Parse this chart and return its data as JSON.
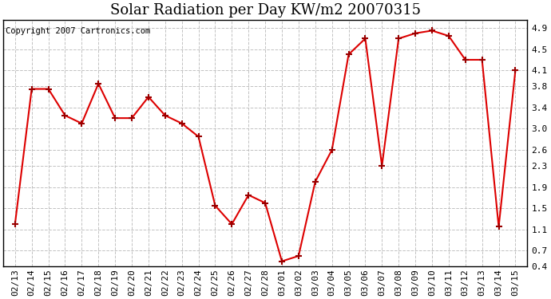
{
  "title": "Solar Radiation per Day KW/m2 20070315",
  "copyright": "Copyright 2007 Cartronics.com",
  "labels": [
    "02/13",
    "02/14",
    "02/15",
    "02/16",
    "02/17",
    "02/18",
    "02/19",
    "02/20",
    "02/21",
    "02/22",
    "02/23",
    "02/24",
    "02/25",
    "02/26",
    "02/27",
    "02/28",
    "03/01",
    "03/02",
    "03/03",
    "03/04",
    "03/05",
    "03/06",
    "03/07",
    "03/08",
    "03/09",
    "03/10",
    "03/11",
    "03/12",
    "03/13",
    "03/14",
    "03/15"
  ],
  "values": [
    1.2,
    3.75,
    3.75,
    3.25,
    3.1,
    3.85,
    3.2,
    3.2,
    3.6,
    3.25,
    3.1,
    2.85,
    1.55,
    1.2,
    1.75,
    1.6,
    0.5,
    0.6,
    2.0,
    2.6,
    4.4,
    4.7,
    2.3,
    4.7,
    4.8,
    4.85,
    4.75,
    4.3,
    4.3,
    1.15,
    4.1
  ],
  "line_color": "#dd0000",
  "marker_color": "#990000",
  "bg_color": "#ffffff",
  "grid_color": "#bbbbbb",
  "ylim": [
    0.4,
    5.05
  ],
  "yticks": [
    0.4,
    0.7,
    1.1,
    1.5,
    1.9,
    2.3,
    2.6,
    3.0,
    3.4,
    3.8,
    4.1,
    4.5,
    4.9
  ],
  "title_fontsize": 13,
  "tick_fontsize": 8,
  "copyright_fontsize": 7.5
}
